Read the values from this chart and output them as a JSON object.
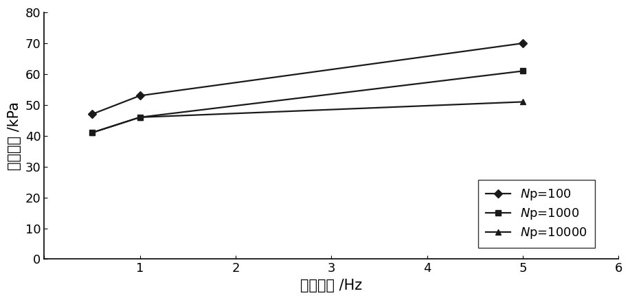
{
  "x": [
    0.5,
    1.0,
    5.0
  ],
  "series": [
    {
      "label": "$\\mathit{N}$p=100",
      "y": [
        47,
        53,
        70
      ],
      "marker": "D",
      "color": "#1a1a1a",
      "markersize": 6,
      "linewidth": 1.6
    },
    {
      "label": "$\\mathit{N}$p=1000",
      "y": [
        41,
        46,
        61
      ],
      "marker": "s",
      "color": "#1a1a1a",
      "markersize": 6,
      "linewidth": 1.6
    },
    {
      "label": "$\\mathit{N}$p=10000",
      "y": [
        41,
        46,
        51
      ],
      "marker": "^",
      "color": "#1a1a1a",
      "markersize": 6,
      "linewidth": 1.6
    }
  ],
  "xlabel": "振动频率 /Hz",
  "ylabel": "动黏聚力 /kPa",
  "xlim": [
    0,
    6
  ],
  "ylim": [
    0,
    80
  ],
  "xticks": [
    0,
    1,
    2,
    3,
    4,
    5,
    6
  ],
  "yticks": [
    0,
    10,
    20,
    30,
    40,
    50,
    60,
    70,
    80
  ],
  "background_color": "#ffffff",
  "axis_color": "#000000",
  "tick_fontsize": 13,
  "label_fontsize": 15,
  "legend_fontsize": 13
}
